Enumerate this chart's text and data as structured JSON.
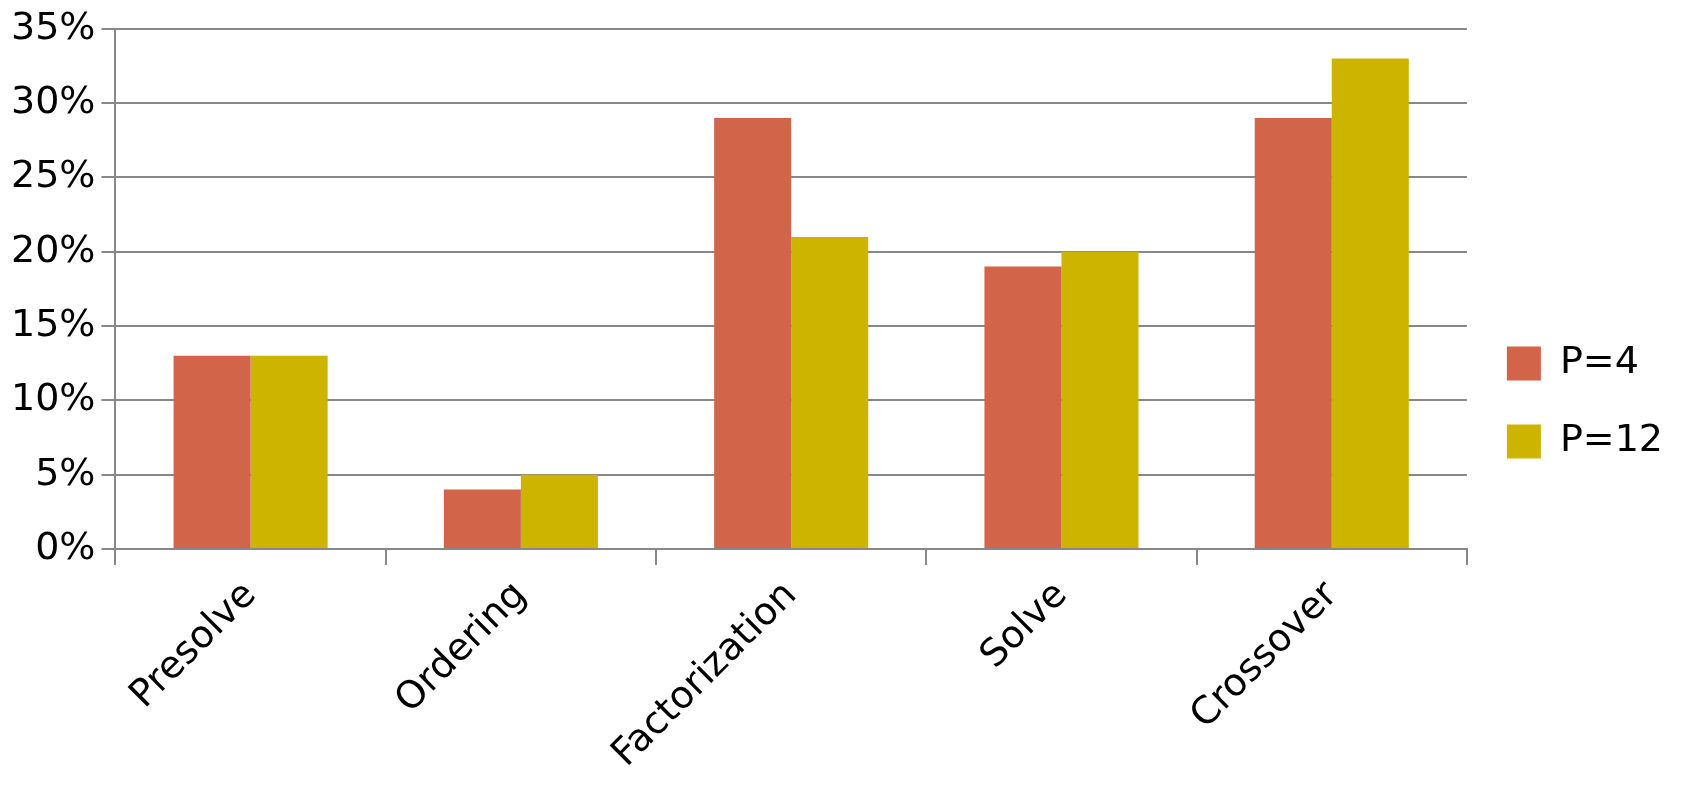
{
  "chart_data": {
    "type": "bar",
    "categories": [
      "Presolve",
      "Ordering",
      "Factorization",
      "Solve",
      "Crossover"
    ],
    "series": [
      {
        "name": "P=4",
        "color": "#d2644a",
        "values": [
          13,
          4,
          29,
          19,
          29
        ]
      },
      {
        "name": "P=12",
        "color": "#cdb400",
        "values": [
          13,
          5,
          21,
          20,
          33
        ]
      }
    ],
    "ylim": [
      0,
      35
    ],
    "yticks": [
      {
        "value": 0,
        "label": "0%"
      },
      {
        "value": 5,
        "label": "5%"
      },
      {
        "value": 10,
        "label": "10%"
      },
      {
        "value": 15,
        "label": "15%"
      },
      {
        "value": 20,
        "label": "20%"
      },
      {
        "value": 25,
        "label": "25%"
      },
      {
        "value": 30,
        "label": "30%"
      },
      {
        "value": 35,
        "label": "35%"
      }
    ],
    "grid": "y",
    "legend": "right"
  }
}
